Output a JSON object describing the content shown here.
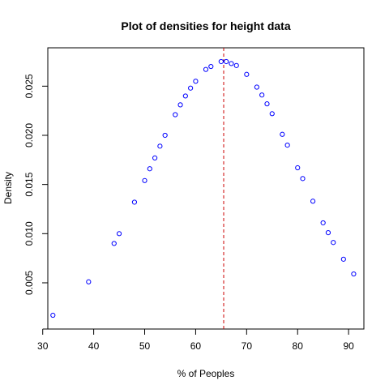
{
  "chart_data": {
    "type": "scatter",
    "title": "Plot of densities for height data",
    "xlabel": "% of Peoples",
    "ylabel": "Density",
    "xlim": [
      31,
      93
    ],
    "ylim": [
      0.0003,
      0.0289
    ],
    "x_ticks": [
      30,
      40,
      50,
      60,
      70,
      80,
      90
    ],
    "x_tick_labels": [
      "30",
      "40",
      "50",
      "60",
      "70",
      "80",
      "90"
    ],
    "y_ticks": [
      0.005,
      0.01,
      0.015,
      0.02,
      0.025
    ],
    "y_tick_labels": [
      "0.005",
      "0.010",
      "0.015",
      "0.020",
      "0.025"
    ],
    "grid": false,
    "point_color": "#0000ff",
    "reference_line": {
      "x": 65.5,
      "color": "#cc0000",
      "style": "dashed"
    },
    "points": [
      {
        "x": 32,
        "y": 0.0017
      },
      {
        "x": 39,
        "y": 0.0051
      },
      {
        "x": 44,
        "y": 0.009
      },
      {
        "x": 45,
        "y": 0.01
      },
      {
        "x": 48,
        "y": 0.0132
      },
      {
        "x": 50,
        "y": 0.0154
      },
      {
        "x": 51,
        "y": 0.0166
      },
      {
        "x": 52,
        "y": 0.0177
      },
      {
        "x": 53,
        "y": 0.0189
      },
      {
        "x": 54,
        "y": 0.02
      },
      {
        "x": 56,
        "y": 0.0221
      },
      {
        "x": 57,
        "y": 0.0231
      },
      {
        "x": 58,
        "y": 0.024
      },
      {
        "x": 59,
        "y": 0.0248
      },
      {
        "x": 60,
        "y": 0.0255
      },
      {
        "x": 62,
        "y": 0.0267
      },
      {
        "x": 63,
        "y": 0.027
      },
      {
        "x": 65,
        "y": 0.0275
      },
      {
        "x": 66,
        "y": 0.0275
      },
      {
        "x": 67,
        "y": 0.0273
      },
      {
        "x": 68,
        "y": 0.0271
      },
      {
        "x": 70,
        "y": 0.0262
      },
      {
        "x": 72,
        "y": 0.0249
      },
      {
        "x": 73,
        "y": 0.0241
      },
      {
        "x": 74,
        "y": 0.0232
      },
      {
        "x": 75,
        "y": 0.0222
      },
      {
        "x": 77,
        "y": 0.0201
      },
      {
        "x": 78,
        "y": 0.019
      },
      {
        "x": 80,
        "y": 0.0167
      },
      {
        "x": 81,
        "y": 0.0156
      },
      {
        "x": 83,
        "y": 0.0133
      },
      {
        "x": 85,
        "y": 0.0111
      },
      {
        "x": 86,
        "y": 0.0101
      },
      {
        "x": 87,
        "y": 0.0091
      },
      {
        "x": 89,
        "y": 0.0074
      },
      {
        "x": 91,
        "y": 0.0059
      }
    ]
  }
}
